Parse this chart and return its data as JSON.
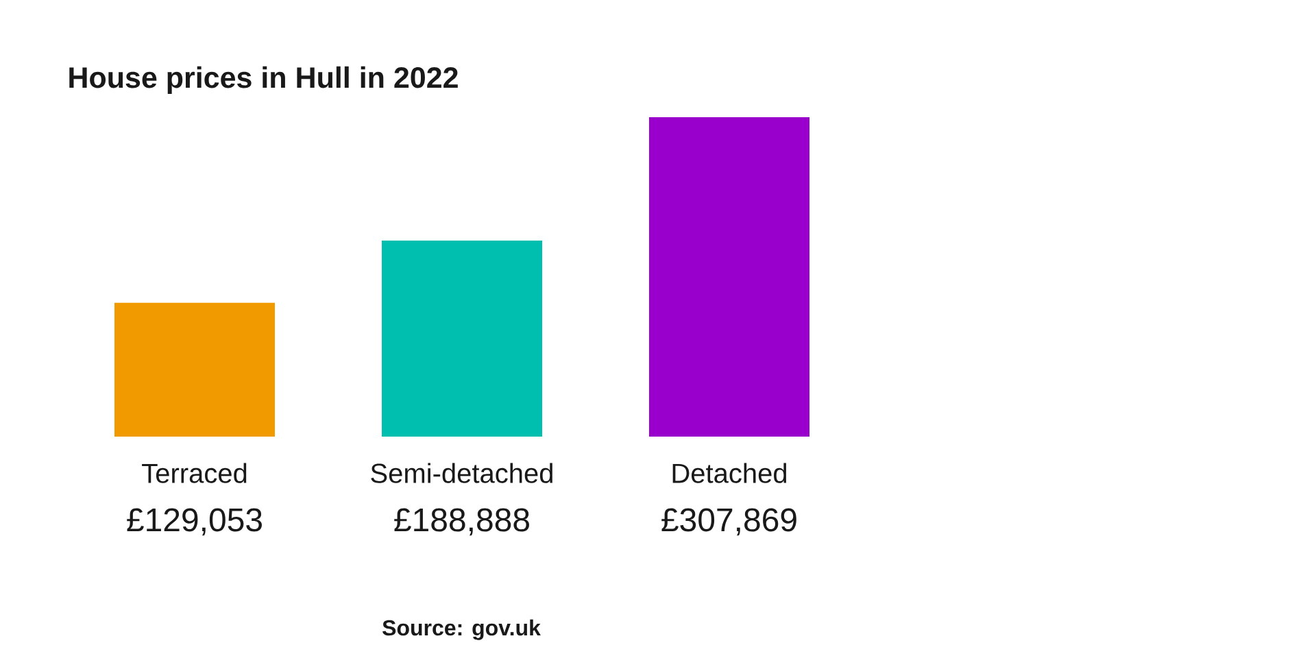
{
  "chart_data": {
    "type": "bar",
    "title": "House prices in Hull in 2022",
    "categories": [
      "Terraced",
      "Semi-detached",
      "Detached"
    ],
    "values": [
      129053,
      188888,
      307869
    ],
    "colors": [
      "#f09a00",
      "#00bfae",
      "#9900cc"
    ],
    "value_labels": [
      "£129,053",
      "£188,888",
      "£307,869"
    ],
    "annotations": [
      "Source: gov.uk"
    ]
  }
}
